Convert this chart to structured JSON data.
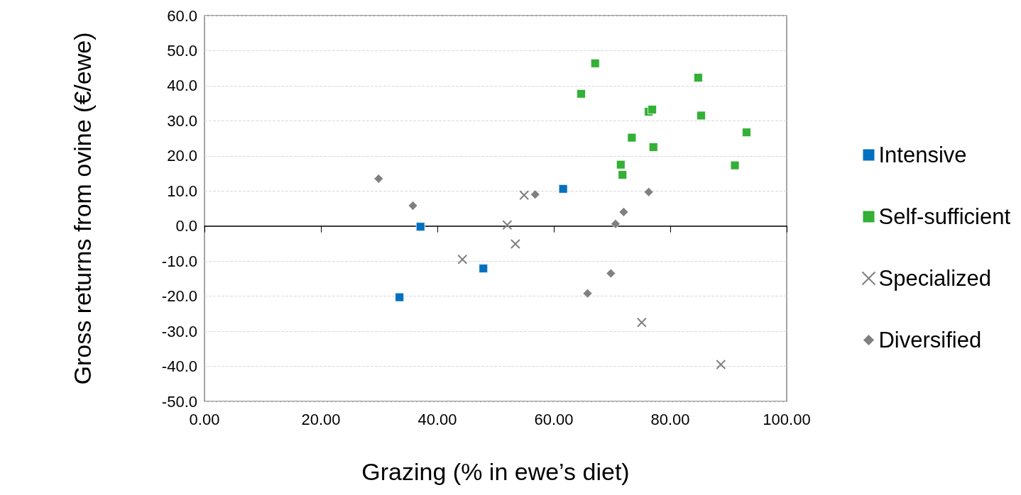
{
  "chart_data": {
    "type": "scatter",
    "xlabel": "Grazing (% in ewe’s diet)",
    "ylabel": "Gross returns from ovine (€/ewe)",
    "xlim": [
      0,
      100
    ],
    "xticks": [
      {
        "value": 0,
        "label": "0.00"
      },
      {
        "value": 20,
        "label": "20.00"
      },
      {
        "value": 40,
        "label": "40.00"
      },
      {
        "value": 60,
        "label": "60.00"
      },
      {
        "value": 80,
        "label": "80.00"
      },
      {
        "value": 100,
        "label": "100.00"
      }
    ],
    "ylim": [
      -50,
      60
    ],
    "yticks": [
      {
        "value": -50,
        "label": "-50.0"
      },
      {
        "value": -40,
        "label": "-40.0"
      },
      {
        "value": -30,
        "label": "-30.0"
      },
      {
        "value": -20,
        "label": "-20.0"
      },
      {
        "value": -10,
        "label": "-10.0"
      },
      {
        "value": 0,
        "label": "0.0"
      },
      {
        "value": 10,
        "label": "10.0"
      },
      {
        "value": 20,
        "label": "20.0"
      },
      {
        "value": 30,
        "label": "30.0"
      },
      {
        "value": 40,
        "label": "40.0"
      },
      {
        "value": 50,
        "label": "50.0"
      },
      {
        "value": 60,
        "label": "60.0"
      }
    ],
    "grid": "y",
    "legend": "right",
    "series": [
      {
        "name": "Intensive",
        "color": "#0070c0",
        "marker": "square",
        "x": [
          61.6,
          37.1,
          33.5,
          47.9
        ],
        "values": [
          10.6,
          -0.2,
          -20.3,
          -12.1
        ]
      },
      {
        "name": "Self-sufficient",
        "color": "#33b035",
        "marker": "square",
        "x": [
          67.1,
          64.7,
          84.8,
          76.3,
          76.9,
          85.3,
          93.1,
          73.4,
          77.1,
          71.5,
          71.8,
          91.1
        ],
        "values": [
          46.4,
          37.7,
          42.3,
          32.6,
          33.2,
          31.5,
          26.7,
          25.2,
          22.5,
          17.5,
          14.6,
          17.3
        ]
      },
      {
        "name": "Specialized",
        "color": "#808080",
        "marker": "cross",
        "x": [
          54.9,
          52.0,
          53.4,
          44.3,
          75.1,
          88.7
        ],
        "values": [
          8.8,
          0.3,
          -5.1,
          -9.5,
          -27.5,
          -39.5
        ]
      },
      {
        "name": "Diversified",
        "color": "#808080",
        "marker": "diamond",
        "x": [
          29.9,
          35.8,
          56.8,
          76.3,
          72.0,
          70.6,
          69.8,
          65.8
        ],
        "values": [
          13.5,
          5.8,
          9.0,
          9.7,
          4.0,
          0.6,
          -13.5,
          -19.2
        ]
      }
    ]
  }
}
